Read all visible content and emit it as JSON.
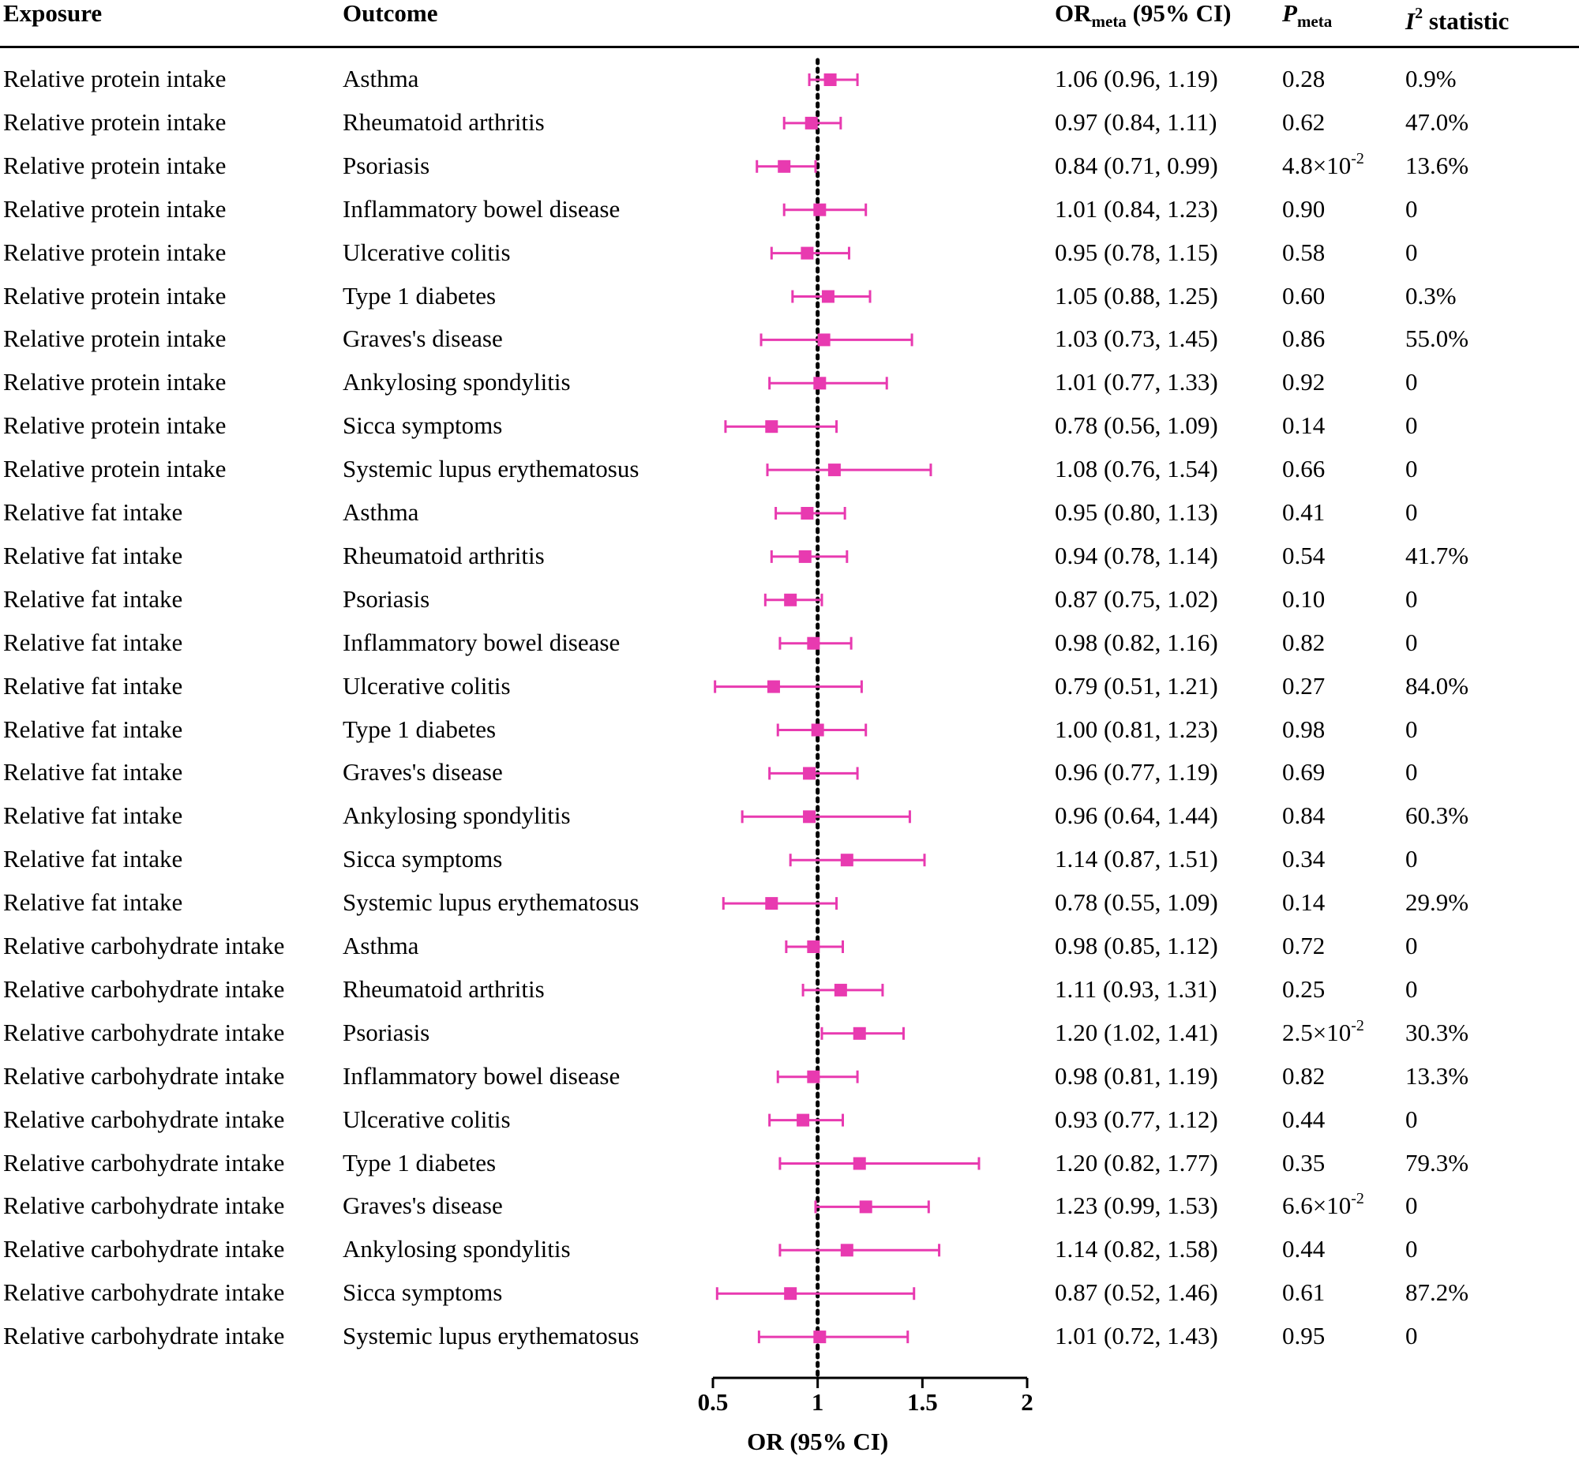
{
  "headers": {
    "exposure": "Exposure",
    "outcome": "Outcome",
    "or_main": "OR",
    "or_sub": "meta",
    "or_tail": " (95% CI)",
    "p_main": "P",
    "p_sub": "meta",
    "i2_main": "I",
    "i2_sup": "2",
    "i2_tail": " statistic"
  },
  "rows": [
    {
      "exposure": "Relative protein intake",
      "outcome": "Asthma",
      "or_text": "1.06 (0.96, 1.19)",
      "p": "0.28",
      "p_exp": "",
      "i2": "0.9%"
    },
    {
      "exposure": "Relative protein intake",
      "outcome": "Rheumatoid arthritis",
      "or_text": "0.97 (0.84, 1.11)",
      "p": "0.62",
      "p_exp": "",
      "i2": "47.0%"
    },
    {
      "exposure": "Relative protein intake",
      "outcome": "Psoriasis",
      "or_text": "0.84 (0.71, 0.99)",
      "p": "4.8×10",
      "p_exp": "-2",
      "i2": "13.6%"
    },
    {
      "exposure": "Relative protein intake",
      "outcome": "Inflammatory bowel disease",
      "or_text": "1.01 (0.84, 1.23)",
      "p": "0.90",
      "p_exp": "",
      "i2": "0"
    },
    {
      "exposure": "Relative protein intake",
      "outcome": "Ulcerative colitis",
      "or_text": "0.95 (0.78, 1.15)",
      "p": "0.58",
      "p_exp": "",
      "i2": "0"
    },
    {
      "exposure": "Relative protein intake",
      "outcome": "Type 1 diabetes",
      "or_text": "1.05 (0.88, 1.25)",
      "p": "0.60",
      "p_exp": "",
      "i2": "0.3%"
    },
    {
      "exposure": "Relative protein intake",
      "outcome": "Graves's disease",
      "or_text": "1.03 (0.73, 1.45)",
      "p": "0.86",
      "p_exp": "",
      "i2": "55.0%"
    },
    {
      "exposure": "Relative protein intake",
      "outcome": "Ankylosing spondylitis",
      "or_text": "1.01 (0.77, 1.33)",
      "p": "0.92",
      "p_exp": "",
      "i2": "0"
    },
    {
      "exposure": "Relative protein intake",
      "outcome": "Sicca symptoms",
      "or_text": "0.78 (0.56, 1.09)",
      "p": "0.14",
      "p_exp": "",
      "i2": "0"
    },
    {
      "exposure": "Relative protein intake",
      "outcome": "Systemic lupus erythematosus",
      "or_text": "1.08 (0.76, 1.54)",
      "p": "0.66",
      "p_exp": "",
      "i2": "0"
    },
    {
      "exposure": "Relative fat intake",
      "outcome": "Asthma",
      "or_text": "0.95 (0.80, 1.13)",
      "p": "0.41",
      "p_exp": "",
      "i2": "0"
    },
    {
      "exposure": "Relative fat intake",
      "outcome": "Rheumatoid arthritis",
      "or_text": "0.94 (0.78, 1.14)",
      "p": "0.54",
      "p_exp": "",
      "i2": "41.7%"
    },
    {
      "exposure": "Relative fat intake",
      "outcome": "Psoriasis",
      "or_text": "0.87 (0.75, 1.02)",
      "p": "0.10",
      "p_exp": "",
      "i2": "0"
    },
    {
      "exposure": "Relative fat intake",
      "outcome": "Inflammatory bowel disease",
      "or_text": "0.98 (0.82, 1.16)",
      "p": "0.82",
      "p_exp": "",
      "i2": "0"
    },
    {
      "exposure": "Relative fat intake",
      "outcome": "Ulcerative colitis",
      "or_text": "0.79 (0.51, 1.21)",
      "p": "0.27",
      "p_exp": "",
      "i2": "84.0%"
    },
    {
      "exposure": "Relative fat intake",
      "outcome": "Type 1 diabetes",
      "or_text": "1.00 (0.81, 1.23)",
      "p": "0.98",
      "p_exp": "",
      "i2": "0"
    },
    {
      "exposure": "Relative fat intake",
      "outcome": "Graves's disease",
      "or_text": "0.96 (0.77, 1.19)",
      "p": "0.69",
      "p_exp": "",
      "i2": "0"
    },
    {
      "exposure": "Relative fat intake",
      "outcome": "Ankylosing spondylitis",
      "or_text": "0.96 (0.64, 1.44)",
      "p": "0.84",
      "p_exp": "",
      "i2": "60.3%"
    },
    {
      "exposure": "Relative fat intake",
      "outcome": "Sicca symptoms",
      "or_text": "1.14 (0.87, 1.51)",
      "p": "0.34",
      "p_exp": "",
      "i2": "0"
    },
    {
      "exposure": "Relative fat intake",
      "outcome": "Systemic lupus erythematosus",
      "or_text": "0.78 (0.55, 1.09)",
      "p": "0.14",
      "p_exp": "",
      "i2": "29.9%"
    },
    {
      "exposure": "Relative carbohydrate intake",
      "outcome": "Asthma",
      "or_text": "0.98 (0.85, 1.12)",
      "p": "0.72",
      "p_exp": "",
      "i2": "0"
    },
    {
      "exposure": "Relative carbohydrate intake",
      "outcome": "Rheumatoid arthritis",
      "or_text": "1.11 (0.93, 1.31)",
      "p": "0.25",
      "p_exp": "",
      "i2": "0"
    },
    {
      "exposure": "Relative carbohydrate intake",
      "outcome": "Psoriasis",
      "or_text": "1.20 (1.02, 1.41)",
      "p": "2.5×10",
      "p_exp": "-2",
      "i2": "30.3%"
    },
    {
      "exposure": "Relative carbohydrate intake",
      "outcome": "Inflammatory bowel disease",
      "or_text": "0.98 (0.81, 1.19)",
      "p": "0.82",
      "p_exp": "",
      "i2": "13.3%"
    },
    {
      "exposure": "Relative carbohydrate intake",
      "outcome": "Ulcerative colitis",
      "or_text": "0.93 (0.77, 1.12)",
      "p": "0.44",
      "p_exp": "",
      "i2": "0"
    },
    {
      "exposure": "Relative carbohydrate intake",
      "outcome": "Type 1 diabetes",
      "or_text": "1.20 (0.82, 1.77)",
      "p": "0.35",
      "p_exp": "",
      "i2": "79.3%"
    },
    {
      "exposure": "Relative carbohydrate intake",
      "outcome": "Graves's disease",
      "or_text": "1.23 (0.99, 1.53)",
      "p": "6.6×10",
      "p_exp": "-2",
      "i2": "0"
    },
    {
      "exposure": "Relative carbohydrate intake",
      "outcome": "Ankylosing spondylitis",
      "or_text": "1.14 (0.82, 1.58)",
      "p": "0.44",
      "p_exp": "",
      "i2": "0"
    },
    {
      "exposure": "Relative carbohydrate intake",
      "outcome": "Sicca symptoms",
      "or_text": "0.87 (0.52, 1.46)",
      "p": "0.61",
      "p_exp": "",
      "i2": "87.2%"
    },
    {
      "exposure": "Relative carbohydrate intake",
      "outcome": "Systemic lupus erythematosus",
      "or_text": "1.01 (0.72, 1.43)",
      "p": "0.95",
      "p_exp": "",
      "i2": "0"
    }
  ],
  "chart_data": {
    "type": "forest",
    "xlabel": "OR (95% CI)",
    "xlim": [
      0.5,
      2
    ],
    "ticks": [
      0.5,
      1,
      1.5,
      2
    ],
    "tick_labels": [
      "0.5",
      "1",
      "1.5",
      "2"
    ],
    "reference_line": 1,
    "marker_color": "#e83ab0",
    "points": [
      {
        "or": 1.06,
        "low": 0.96,
        "high": 1.19
      },
      {
        "or": 0.97,
        "low": 0.84,
        "high": 1.11
      },
      {
        "or": 0.84,
        "low": 0.71,
        "high": 0.99
      },
      {
        "or": 1.01,
        "low": 0.84,
        "high": 1.23
      },
      {
        "or": 0.95,
        "low": 0.78,
        "high": 1.15
      },
      {
        "or": 1.05,
        "low": 0.88,
        "high": 1.25
      },
      {
        "or": 1.03,
        "low": 0.73,
        "high": 1.45
      },
      {
        "or": 1.01,
        "low": 0.77,
        "high": 1.33
      },
      {
        "or": 0.78,
        "low": 0.56,
        "high": 1.09
      },
      {
        "or": 1.08,
        "low": 0.76,
        "high": 1.54
      },
      {
        "or": 0.95,
        "low": 0.8,
        "high": 1.13
      },
      {
        "or": 0.94,
        "low": 0.78,
        "high": 1.14
      },
      {
        "or": 0.87,
        "low": 0.75,
        "high": 1.02
      },
      {
        "or": 0.98,
        "low": 0.82,
        "high": 1.16
      },
      {
        "or": 0.79,
        "low": 0.51,
        "high": 1.21
      },
      {
        "or": 1.0,
        "low": 0.81,
        "high": 1.23
      },
      {
        "or": 0.96,
        "low": 0.77,
        "high": 1.19
      },
      {
        "or": 0.96,
        "low": 0.64,
        "high": 1.44
      },
      {
        "or": 1.14,
        "low": 0.87,
        "high": 1.51
      },
      {
        "or": 0.78,
        "low": 0.55,
        "high": 1.09
      },
      {
        "or": 0.98,
        "low": 0.85,
        "high": 1.12
      },
      {
        "or": 1.11,
        "low": 0.93,
        "high": 1.31
      },
      {
        "or": 1.2,
        "low": 1.02,
        "high": 1.41
      },
      {
        "or": 0.98,
        "low": 0.81,
        "high": 1.19
      },
      {
        "or": 0.93,
        "low": 0.77,
        "high": 1.12
      },
      {
        "or": 1.2,
        "low": 0.82,
        "high": 1.77
      },
      {
        "or": 1.23,
        "low": 0.99,
        "high": 1.53
      },
      {
        "or": 1.14,
        "low": 0.82,
        "high": 1.58
      },
      {
        "or": 0.87,
        "low": 0.52,
        "high": 1.46
      },
      {
        "or": 1.01,
        "low": 0.72,
        "high": 1.43
      }
    ]
  }
}
